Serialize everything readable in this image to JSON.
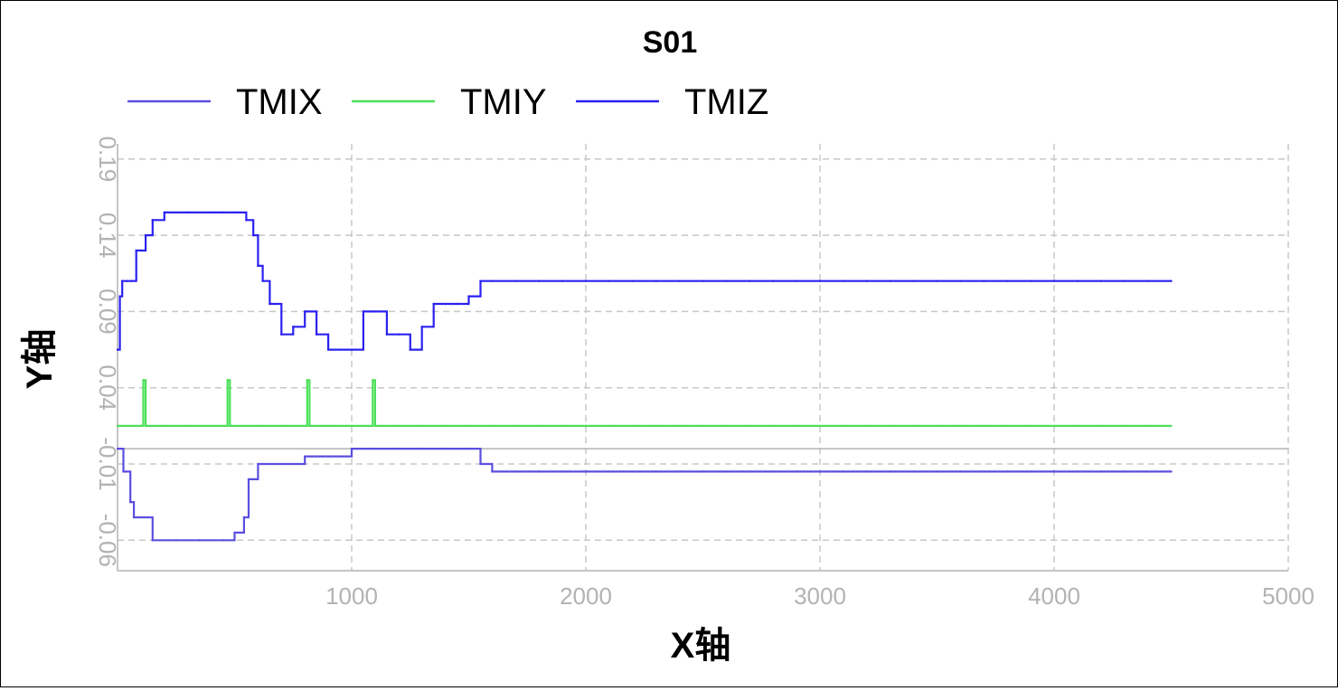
{
  "chart_data": {
    "type": "line",
    "title": "S01",
    "xlabel": "X轴",
    "ylabel": "Y轴",
    "xlim": [
      0,
      5000
    ],
    "ylim": [
      -0.08,
      0.2
    ],
    "x_ticks": [
      1000,
      2000,
      3000,
      4000,
      5000
    ],
    "x_tick_labels": [
      "1000",
      "2000",
      "3000",
      "4000",
      "5000"
    ],
    "y_ticks": [
      -0.06,
      -0.01,
      0.04,
      0.09,
      0.14,
      0.19
    ],
    "y_tick_labels": [
      "-0.06",
      "-0.01",
      "0.04",
      "0.09",
      "0.14",
      "0.19"
    ],
    "grid": true,
    "legend_position": "top-left",
    "series": [
      {
        "name": "TMIX",
        "color": "#5b4ee0",
        "x": [
          0,
          25,
          55,
          70,
          150,
          250,
          350,
          450,
          500,
          540,
          560,
          600,
          650,
          700,
          800,
          900,
          1000,
          1100,
          1200,
          1300,
          1400,
          1500,
          1550,
          1600,
          1700,
          1800,
          1900,
          2000,
          2100,
          2200,
          2300,
          2400,
          2500,
          2600,
          2700,
          2800,
          2900,
          3000,
          3100,
          3200,
          3300,
          3400,
          3500,
          3600,
          3700,
          3800,
          3900,
          4000,
          4100,
          4200,
          4300,
          4400,
          4500
        ],
        "values": [
          0.0,
          -0.015,
          -0.035,
          -0.045,
          -0.06,
          -0.06,
          -0.06,
          -0.06,
          -0.055,
          -0.045,
          -0.02,
          -0.01,
          -0.01,
          -0.01,
          -0.005,
          -0.005,
          0.0,
          0.0,
          0.0,
          0.0,
          0.0,
          0.0,
          -0.01,
          -0.015,
          -0.015,
          -0.015,
          -0.015,
          -0.015,
          -0.015,
          -0.015,
          -0.015,
          -0.015,
          -0.015,
          -0.015,
          -0.015,
          -0.015,
          -0.015,
          -0.015,
          -0.015,
          -0.015,
          -0.015,
          -0.015,
          -0.015,
          -0.015,
          -0.015,
          -0.015,
          -0.015,
          -0.015,
          -0.015,
          -0.015,
          -0.015,
          -0.015,
          -0.015
        ]
      },
      {
        "name": "TMIY",
        "color": "#4be05a",
        "x": [
          0,
          100,
          110,
          120,
          200,
          300,
          470,
          480,
          600,
          700,
          810,
          820,
          900,
          1000,
          1090,
          1100,
          1200,
          1300,
          1400,
          1500,
          1600,
          1700,
          1800,
          1900,
          2000,
          2100,
          2200,
          2300,
          2400,
          2500,
          2600,
          2700,
          2800,
          2900,
          3000,
          3100,
          3200,
          3300,
          3400,
          3500,
          3600,
          3700,
          3800,
          3900,
          4000,
          4100,
          4200,
          4300,
          4400,
          4500
        ],
        "values": [
          0.015,
          0.015,
          0.045,
          0.015,
          0.015,
          0.015,
          0.045,
          0.015,
          0.015,
          0.015,
          0.045,
          0.015,
          0.015,
          0.015,
          0.045,
          0.015,
          0.015,
          0.015,
          0.015,
          0.015,
          0.015,
          0.015,
          0.015,
          0.015,
          0.015,
          0.015,
          0.015,
          0.015,
          0.015,
          0.015,
          0.015,
          0.015,
          0.015,
          0.015,
          0.015,
          0.015,
          0.015,
          0.015,
          0.015,
          0.015,
          0.015,
          0.015,
          0.015,
          0.015,
          0.015,
          0.015,
          0.015,
          0.015,
          0.015,
          0.015
        ]
      },
      {
        "name": "TMIZ",
        "color": "#2b21f0",
        "x": [
          0,
          10,
          20,
          40,
          60,
          80,
          100,
          120,
          150,
          200,
          300,
          400,
          450,
          500,
          550,
          580,
          600,
          620,
          650,
          700,
          750,
          800,
          850,
          900,
          950,
          1000,
          1050,
          1100,
          1150,
          1200,
          1250,
          1300,
          1350,
          1400,
          1450,
          1500,
          1550,
          1600,
          1700,
          1800,
          1900,
          2000,
          2100,
          2200,
          2300,
          2400,
          2500,
          2600,
          2700,
          2800,
          2900,
          3000,
          3100,
          3200,
          3300,
          3400,
          3500,
          3600,
          3700,
          3800,
          3900,
          4000,
          4100,
          4200,
          4300,
          4400,
          4500
        ],
        "values": [
          0.065,
          0.1,
          0.11,
          0.11,
          0.11,
          0.13,
          0.13,
          0.14,
          0.15,
          0.155,
          0.155,
          0.155,
          0.155,
          0.155,
          0.15,
          0.14,
          0.12,
          0.11,
          0.095,
          0.075,
          0.08,
          0.09,
          0.075,
          0.065,
          0.065,
          0.065,
          0.09,
          0.09,
          0.075,
          0.075,
          0.065,
          0.08,
          0.095,
          0.095,
          0.095,
          0.1,
          0.11,
          0.11,
          0.11,
          0.11,
          0.11,
          0.11,
          0.11,
          0.11,
          0.11,
          0.11,
          0.11,
          0.11,
          0.11,
          0.11,
          0.11,
          0.11,
          0.11,
          0.11,
          0.11,
          0.11,
          0.11,
          0.11,
          0.11,
          0.11,
          0.11,
          0.11,
          0.11,
          0.11,
          0.11,
          0.11,
          0.11
        ]
      }
    ]
  }
}
